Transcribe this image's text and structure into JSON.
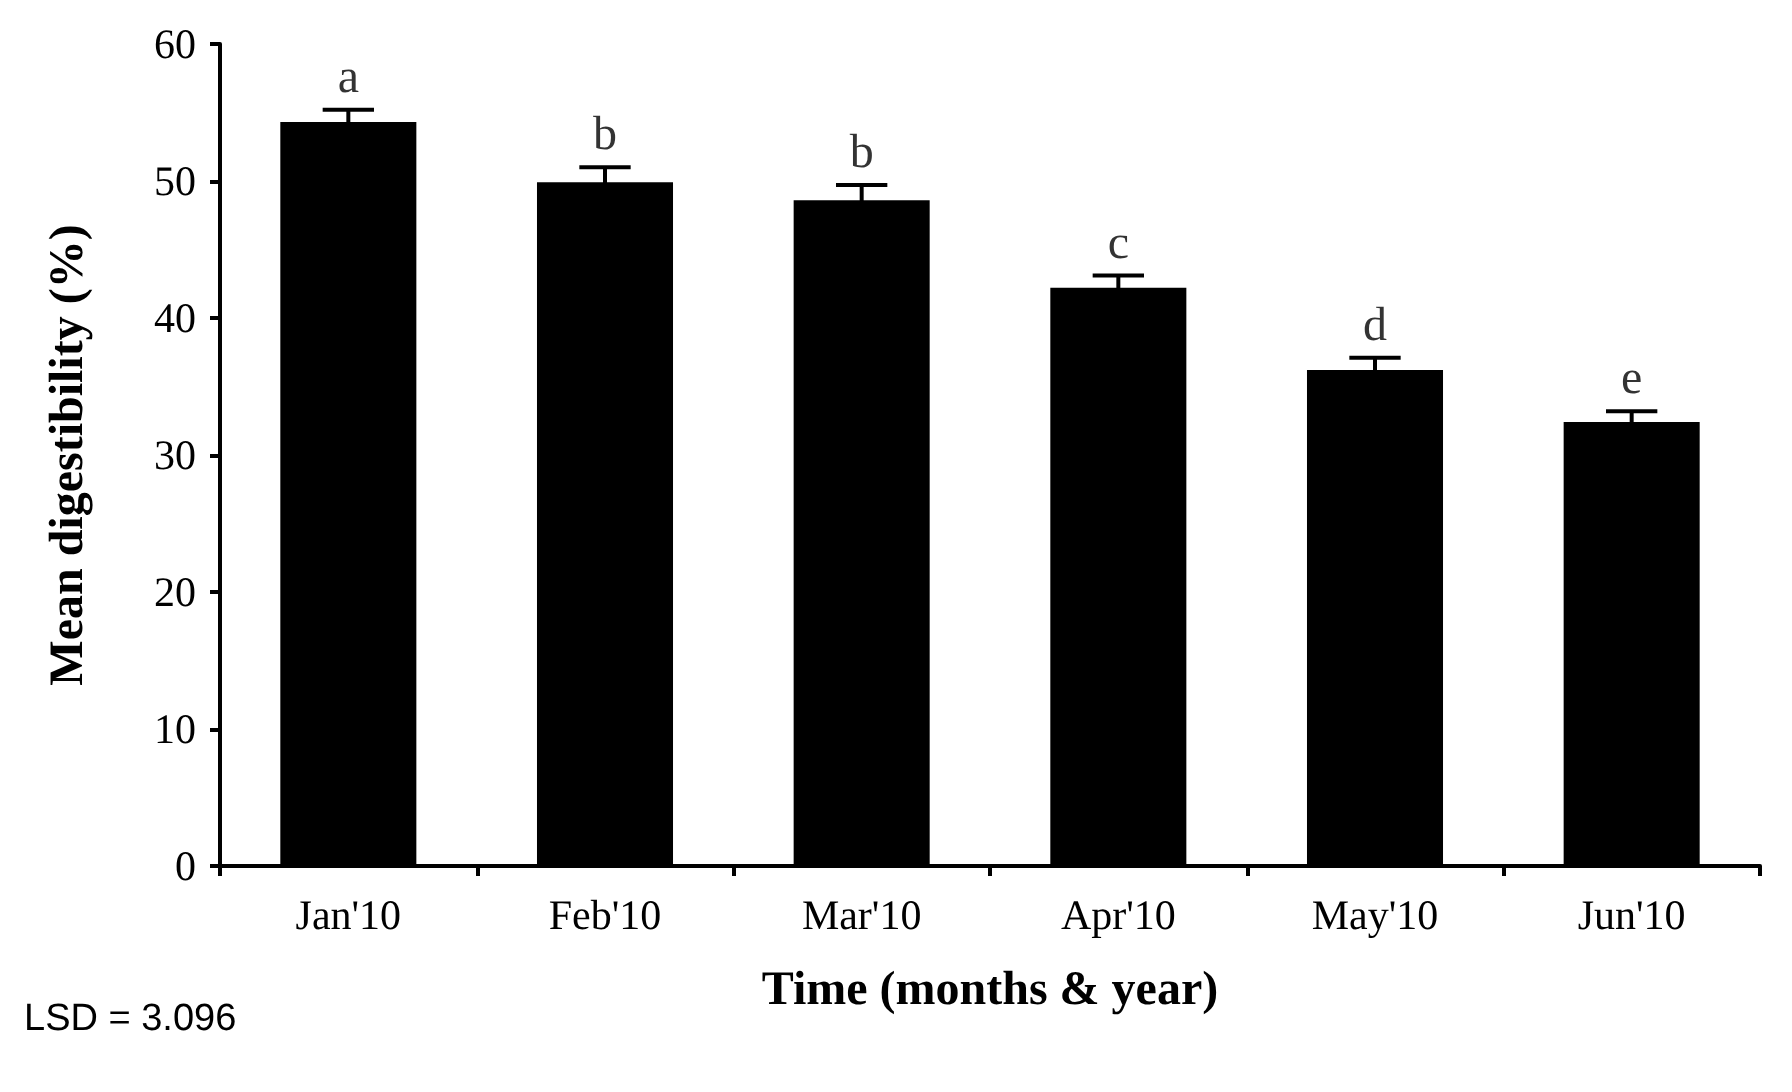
{
  "chart_data": {
    "type": "bar",
    "xlabel": "Time (months & year)",
    "ylabel": "Mean digestibility (%)",
    "categories": [
      "Jan'10",
      "Feb'10",
      "Mar'10",
      "Apr'10",
      "May'10",
      "Jun'10"
    ],
    "values": [
      54.3,
      49.9,
      48.6,
      42.2,
      36.2,
      32.4
    ],
    "errors": [
      0.9,
      1.1,
      1.1,
      0.9,
      0.9,
      0.8
    ],
    "color": "#000000",
    "ylim": [
      0,
      60
    ],
    "yticks": [
      0,
      10,
      20,
      30,
      40,
      50,
      60
    ],
    "grid": false,
    "annotations": [
      {
        "text": "a",
        "x": "Jan'10",
        "y": 55.2
      },
      {
        "text": "b",
        "x": "Feb'10",
        "y": 51.0
      },
      {
        "text": "b",
        "x": "Mar'10",
        "y": 49.7
      },
      {
        "text": "c",
        "x": "Apr'10",
        "y": 43.1
      },
      {
        "text": "d",
        "x": "May'10",
        "y": 37.1
      },
      {
        "text": "e",
        "x": "Jun'10",
        "y": 33.2
      },
      "LSD = 3.096"
    ]
  }
}
